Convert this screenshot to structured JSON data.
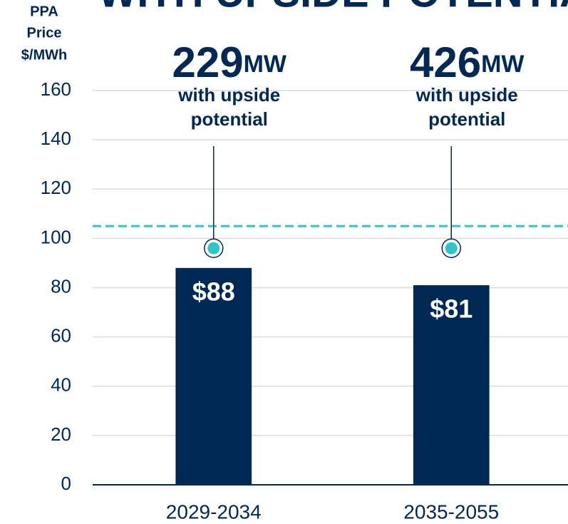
{
  "chart_data": {
    "type": "bar",
    "title": "WITH UPSIDE POTENTIAL",
    "y_axis_label": [
      "PPA",
      "Price",
      "$/MWh"
    ],
    "categories": [
      "2029-2034",
      "2035-2055"
    ],
    "values": [
      88,
      81
    ],
    "value_labels": [
      "$88",
      "$81"
    ],
    "color": "#002855",
    "ylim": [
      0,
      160
    ],
    "yticks": [
      0,
      20,
      40,
      60,
      80,
      100,
      120,
      140,
      160
    ],
    "grid": true,
    "reference_line": {
      "value": 105,
      "color": "#2ec4c9",
      "style": "dashed"
    },
    "markers": {
      "values": [
        96,
        96
      ],
      "color": "#2ec4c9"
    },
    "annotations": [
      {
        "value": 229,
        "unit": "MW",
        "lines": [
          "with upside",
          "potential"
        ]
      },
      {
        "value": 426,
        "unit": "MW",
        "lines": [
          "with upside",
          "potential"
        ]
      }
    ]
  }
}
